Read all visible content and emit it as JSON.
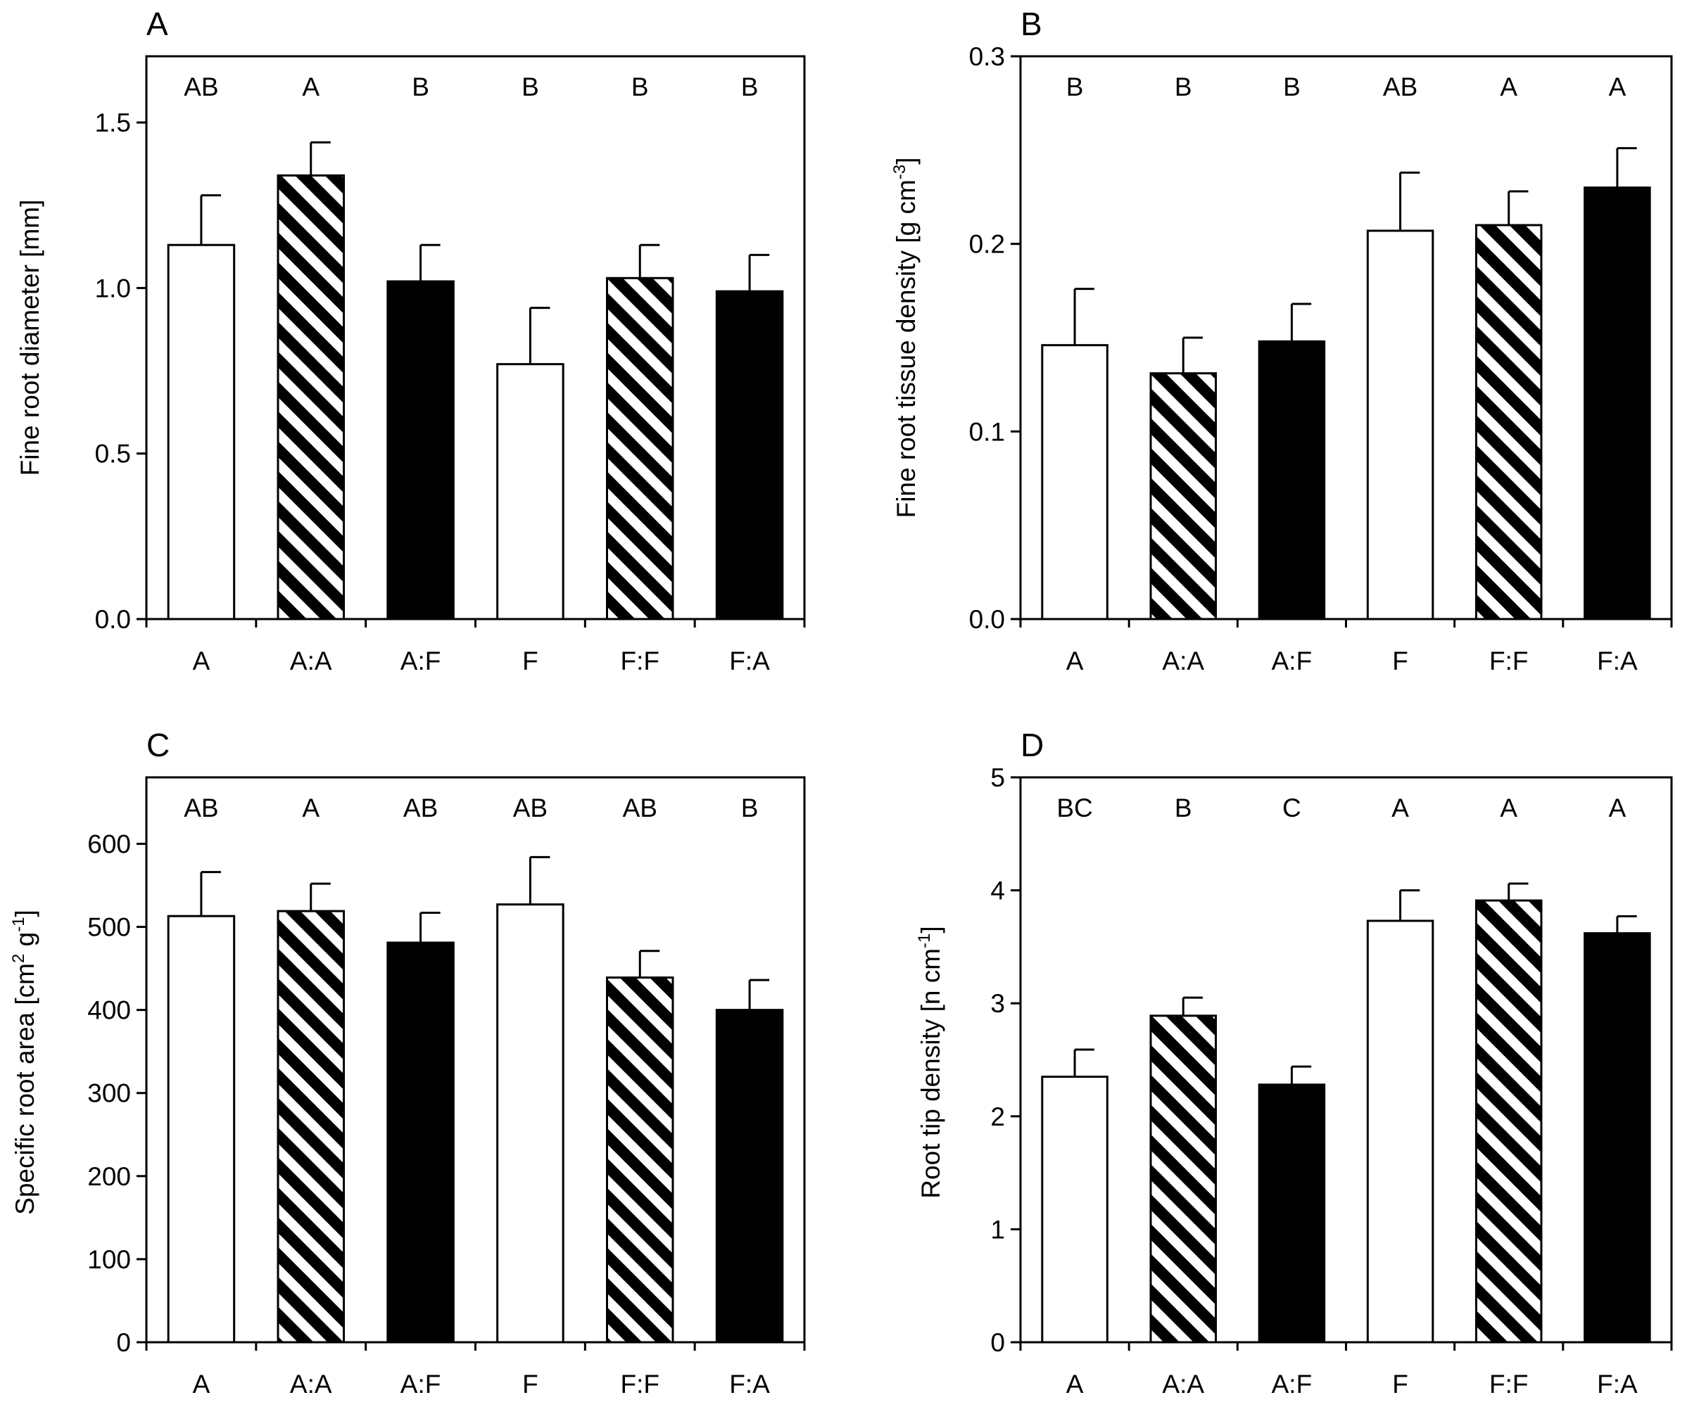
{
  "figure": {
    "series_styles": [
      {
        "treatment": "A",
        "fill": "#ffffff",
        "pattern": "open"
      },
      {
        "treatment": "A:A",
        "fill": "#000000",
        "pattern": "hatched"
      },
      {
        "treatment": "A:F",
        "fill": "#000000",
        "pattern": "solid"
      },
      {
        "treatment": "F",
        "fill": "#ffffff",
        "pattern": "open"
      },
      {
        "treatment": "F:F",
        "fill": "#000000",
        "pattern": "hatched"
      },
      {
        "treatment": "F:A",
        "fill": "#000000",
        "pattern": "solid"
      }
    ]
  },
  "chart_data": [
    {
      "panel": "A",
      "type": "bar",
      "categories": [
        "A",
        "A:A",
        "A:F",
        "F",
        "F:F",
        "F:A"
      ],
      "values": [
        1.13,
        1.34,
        1.02,
        0.77,
        1.03,
        0.99
      ],
      "errors": [
        0.15,
        0.1,
        0.11,
        0.17,
        0.1,
        0.11
      ],
      "significance": [
        "AB",
        "A",
        "B",
        "B",
        "B",
        "B"
      ],
      "ylabel": "Fine root diameter [mm]",
      "ylim": [
        0,
        1.7
      ],
      "yticks": [
        0.0,
        0.5,
        1.0,
        1.5
      ],
      "ytick_labels": [
        "0.0",
        "0.5",
        "1.0",
        "1.5"
      ]
    },
    {
      "panel": "B",
      "type": "bar",
      "categories": [
        "A",
        "A:A",
        "A:F",
        "F",
        "F:F",
        "F:A"
      ],
      "values": [
        0.146,
        0.131,
        0.148,
        0.207,
        0.21,
        0.23
      ],
      "errors": [
        0.03,
        0.019,
        0.02,
        0.031,
        0.018,
        0.021
      ],
      "significance": [
        "B",
        "B",
        "B",
        "AB",
        "A",
        "A"
      ],
      "ylabel_main": "Fine root tissue density [g cm",
      "ylabel_sup": "-3",
      "ylabel_end": "]",
      "ylim": [
        0,
        0.3
      ],
      "yticks": [
        0.0,
        0.1,
        0.2,
        0.3
      ],
      "ytick_labels": [
        "0.0",
        "0.1",
        "0.2",
        "0.3"
      ]
    },
    {
      "panel": "C",
      "type": "bar",
      "categories": [
        "A",
        "A:A",
        "A:F",
        "F",
        "F:F",
        "F:A"
      ],
      "values": [
        513,
        519,
        481,
        527,
        439,
        400
      ],
      "errors": [
        53,
        33,
        36,
        57,
        32,
        36
      ],
      "significance": [
        "AB",
        "A",
        "AB",
        "AB",
        "AB",
        "B"
      ],
      "ylabel_main": "Specific root area [cm",
      "ylabel_sup1": "2",
      "ylabel_mid": " g",
      "ylabel_sup2": "-1",
      "ylabel_end": "]",
      "ylim": [
        0,
        680
      ],
      "yticks": [
        0,
        100,
        200,
        300,
        400,
        500,
        600
      ],
      "ytick_labels": [
        "0",
        "100",
        "200",
        "300",
        "400",
        "500",
        "600"
      ]
    },
    {
      "panel": "D",
      "type": "bar",
      "categories": [
        "A",
        "A:A",
        "A:F",
        "F",
        "F:F",
        "F:A"
      ],
      "values": [
        2.35,
        2.89,
        2.28,
        3.73,
        3.91,
        3.62
      ],
      "errors": [
        0.24,
        0.16,
        0.16,
        0.27,
        0.15,
        0.15
      ],
      "significance": [
        "BC",
        "B",
        "C",
        "A",
        "A",
        "A"
      ],
      "ylabel_main": "Root tip density [n cm",
      "ylabel_sup": "-1",
      "ylabel_end": "]",
      "ylim": [
        0,
        5
      ],
      "yticks": [
        0,
        1,
        2,
        3,
        4,
        5
      ],
      "ytick_labels": [
        "0",
        "1",
        "2",
        "3",
        "4",
        "5"
      ]
    }
  ]
}
